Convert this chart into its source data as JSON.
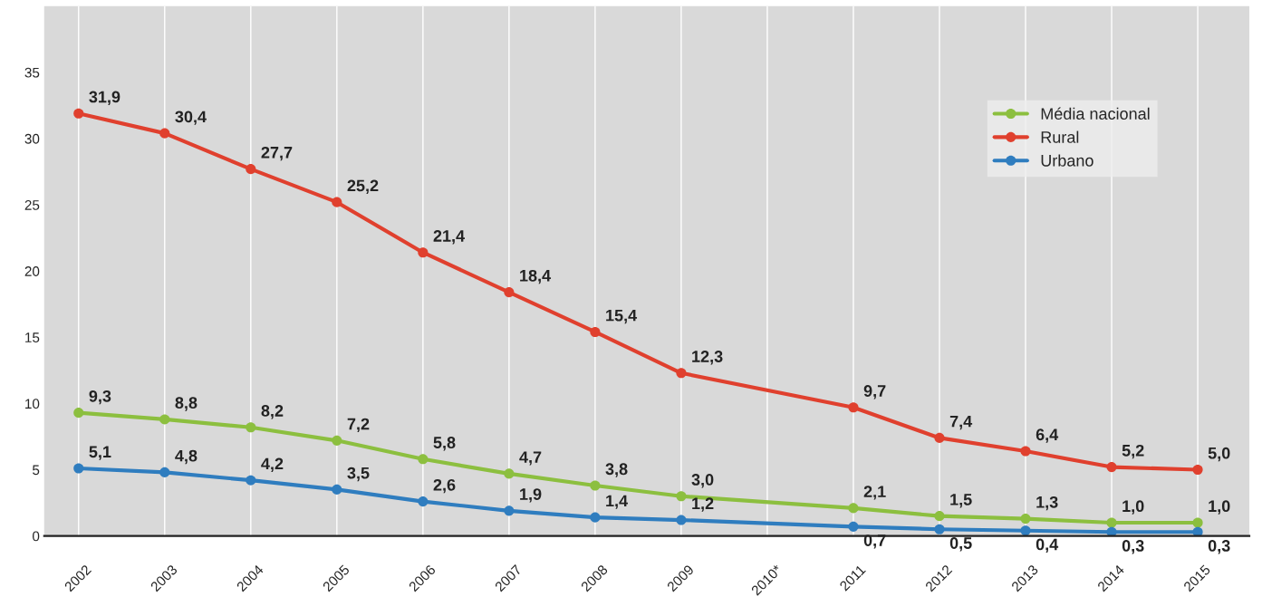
{
  "chart_data": {
    "type": "line",
    "x": [
      2002,
      2003,
      2004,
      2005,
      2006,
      2007,
      2008,
      2009,
      2011,
      2012,
      2013,
      2014,
      2015
    ],
    "xlim": [
      2001.6,
      2015.6
    ],
    "xticks": [
      2002,
      2003,
      2004,
      2005,
      2006,
      2007,
      2008,
      2009,
      {
        "value": 2010,
        "label": "2010*"
      },
      2011,
      2012,
      2013,
      2014,
      2015
    ],
    "ylim": [
      0,
      40
    ],
    "yticks": [
      0,
      5,
      10,
      15,
      20,
      25,
      30,
      35
    ],
    "grid": "x",
    "legend": "right",
    "marker": "circle",
    "line_style": "solid",
    "series": [
      {
        "name": "Média nacional",
        "color": "#8cbf3f",
        "values": [
          9.3,
          8.8,
          8.2,
          7.2,
          5.8,
          4.7,
          3.8,
          3.0,
          2.1,
          1.5,
          1.3,
          1.0,
          1.0
        ],
        "value_labels": [
          "9,3",
          "8,8",
          "8,2",
          "7,2",
          "5,8",
          "4,7",
          "3,8",
          "3,0",
          "2,1",
          "1,5",
          "1,3",
          "1,0",
          "1,0"
        ]
      },
      {
        "name": "Rural",
        "color": "#e0402e",
        "values": [
          31.9,
          30.4,
          27.7,
          25.2,
          21.4,
          18.4,
          15.4,
          12.3,
          9.7,
          7.4,
          6.4,
          5.2,
          5.0
        ],
        "value_labels": [
          "31,9",
          "30,4",
          "27,7",
          "25,2",
          "21,4",
          "18,4",
          "15,4",
          "12,3",
          "9,7",
          "7,4",
          "6,4",
          "5,2",
          "5,0"
        ]
      },
      {
        "name": "Urbano",
        "color": "#2f7dbf",
        "values": [
          5.1,
          4.8,
          4.2,
          3.5,
          2.6,
          1.9,
          1.4,
          1.2,
          0.7,
          0.5,
          0.4,
          0.3,
          0.3
        ],
        "value_labels": [
          "5,1",
          "4,8",
          "4,2",
          "3,5",
          "2,6",
          "1,9",
          "1,4",
          "1,2",
          "0,7",
          "0,5",
          "0,4",
          "0,3",
          "0,3"
        ]
      }
    ]
  }
}
